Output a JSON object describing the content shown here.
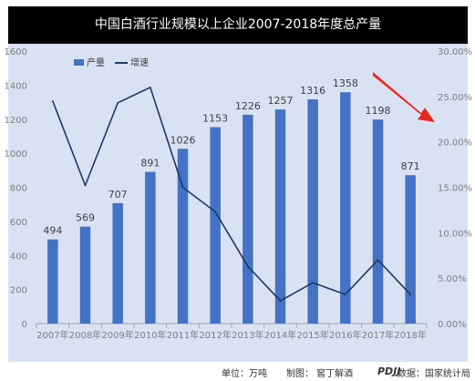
{
  "chart_data": {
    "type": "bar+line",
    "title": "中国白酒行业规模以上企业2007-2018年度总产量",
    "categories": [
      "2007年",
      "2008年",
      "2009年",
      "2010年",
      "2011年",
      "2012年",
      "2013年",
      "2014年",
      "2015年",
      "2016年",
      "2017年",
      "2018年"
    ],
    "series": [
      {
        "name": "产量",
        "type": "bar",
        "axis": "left",
        "values": [
          494,
          569,
          707,
          891,
          1026,
          1153,
          1226,
          1257,
          1316,
          1358,
          1198,
          871
        ]
      },
      {
        "name": "增速",
        "type": "line",
        "axis": "right",
        "values": [
          24.5,
          15.2,
          24.3,
          26.0,
          15.0,
          12.3,
          6.3,
          2.5,
          4.5,
          3.2,
          7.0,
          3.2
        ]
      }
    ],
    "left_axis": {
      "ylim": [
        0,
        1600
      ],
      "ticks": [
        "0",
        "200",
        "400",
        "600",
        "800",
        "1000",
        "1200",
        "1400",
        "1600"
      ]
    },
    "right_axis": {
      "ylim": [
        0,
        30
      ],
      "ticks": [
        "0.00%",
        "5.00%",
        "10.00%",
        "15.00%",
        "20.00%",
        "25.00%",
        "30.00%"
      ]
    },
    "grid": false,
    "legend_position": "top-left",
    "colors": {
      "bar": "#4472c4",
      "line": "#1f3864",
      "arrow": "#e8281e",
      "background": "#d9e2f3",
      "title_bar": "#000000"
    }
  },
  "footer": {
    "unit": "单位：万吨",
    "made_by": "制图：  窖丁解酒",
    "logo_text": "PDJJ",
    "source": "数据：国家统计局"
  }
}
